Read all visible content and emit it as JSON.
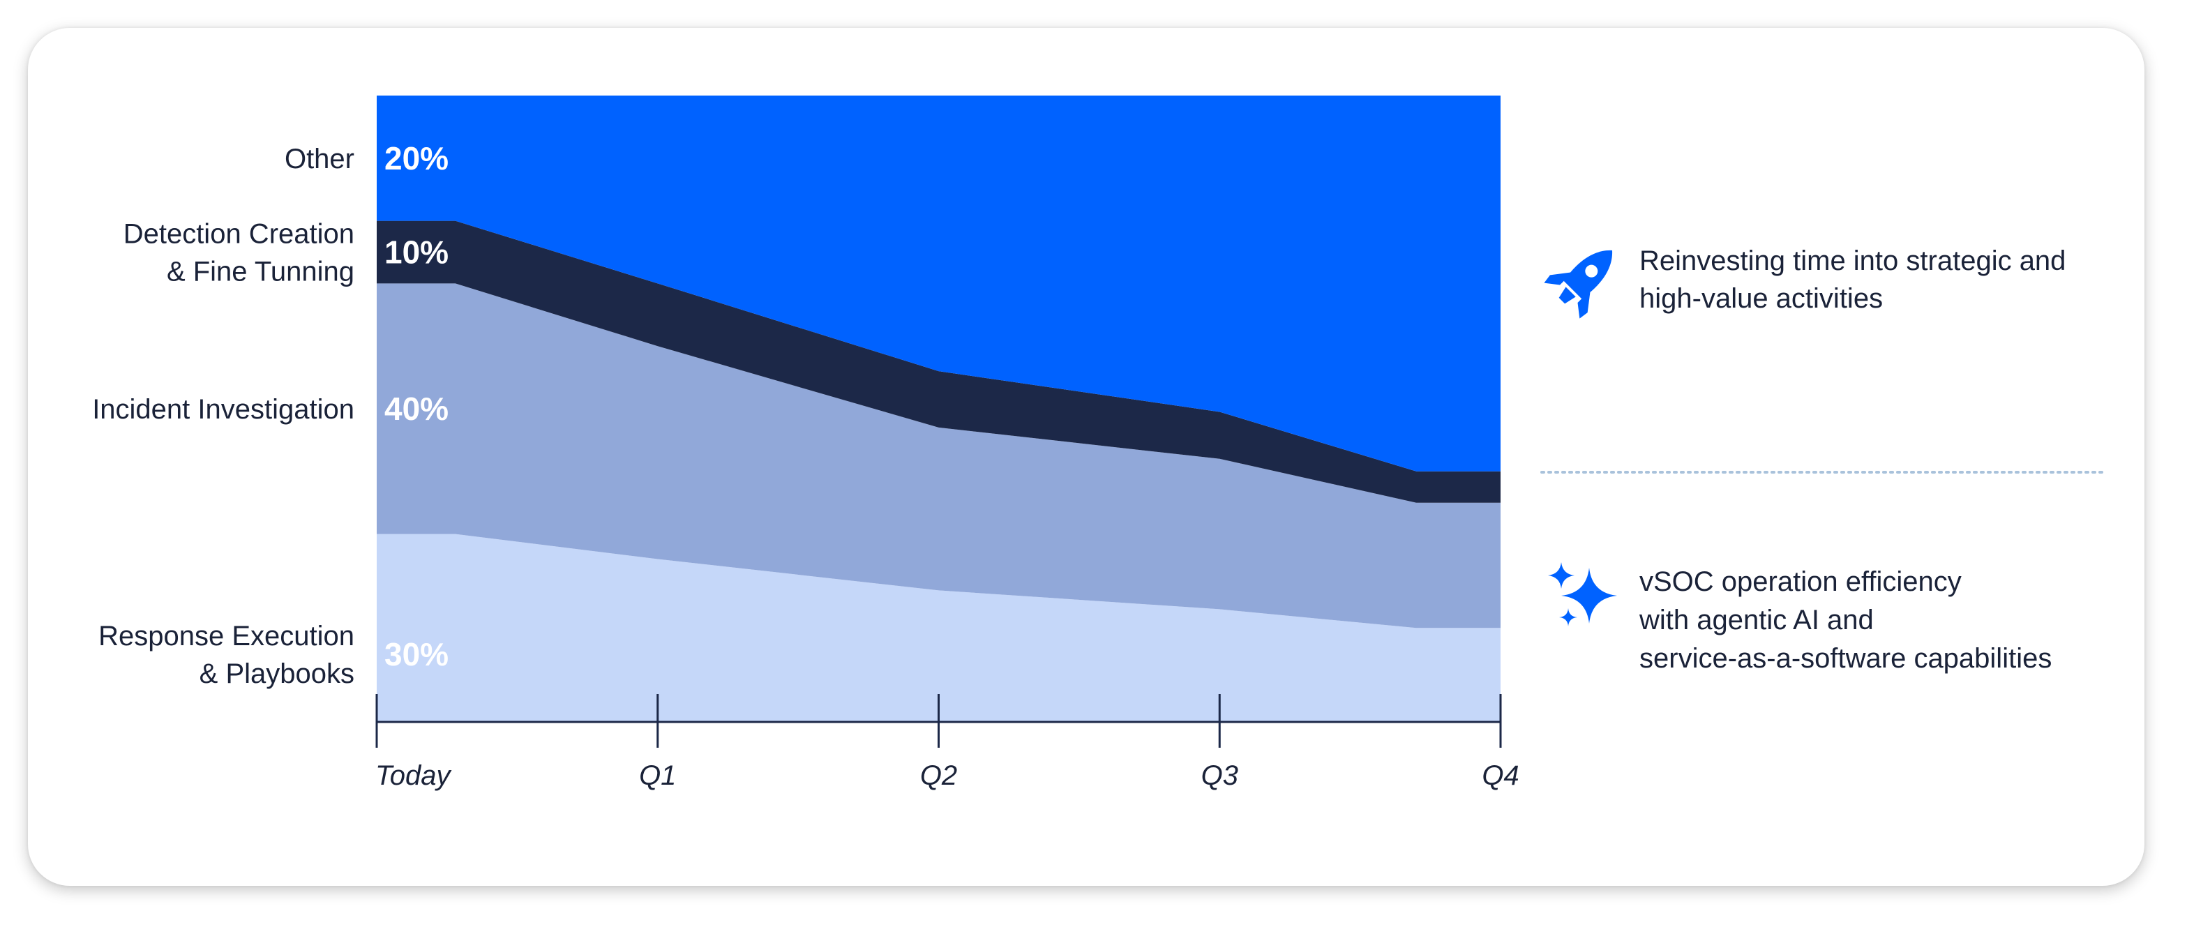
{
  "chart_data": {
    "type": "area",
    "stacked": true,
    "x": [
      "Today",
      "Q1",
      "Q2",
      "Q3",
      "Q4"
    ],
    "ylim": [
      0,
      100
    ],
    "series": [
      {
        "name": "Response Execution & Playbooks",
        "label_lines": [
          "Response Execution",
          "& Playbooks"
        ],
        "pct_label": "30%",
        "color": "#c5d7f9",
        "points": [
          [
            0,
            30
          ],
          [
            0.28,
            30
          ],
          [
            1,
            26
          ],
          [
            2,
            21
          ],
          [
            3,
            18
          ],
          [
            3.7,
            15
          ],
          [
            4,
            15
          ]
        ]
      },
      {
        "name": "Incident Investigation",
        "label_lines": [
          "Incident Investigation"
        ],
        "pct_label": "40%",
        "color": "#91a8d9",
        "points": [
          [
            0,
            40
          ],
          [
            0.28,
            40
          ],
          [
            1,
            34
          ],
          [
            2,
            26
          ],
          [
            3,
            24
          ],
          [
            3.7,
            20
          ],
          [
            4,
            20
          ]
        ]
      },
      {
        "name": "Detection Creation & Fine Tunning",
        "label_lines": [
          "Detection Creation",
          "& Fine Tunning"
        ],
        "pct_label": "10%",
        "color": "#1c2848",
        "points": [
          [
            0,
            10
          ],
          [
            0.28,
            10
          ],
          [
            1,
            10
          ],
          [
            2,
            9
          ],
          [
            3,
            7.5
          ],
          [
            3.7,
            5
          ],
          [
            4,
            5
          ]
        ]
      },
      {
        "name": "Other",
        "label_lines": [
          "Other"
        ],
        "pct_label": "20%",
        "color": "#0062ff",
        "points": [
          [
            0,
            20
          ],
          [
            0.28,
            20
          ],
          [
            1,
            30
          ],
          [
            2,
            44
          ],
          [
            3,
            50.5
          ],
          [
            3.7,
            60
          ],
          [
            4,
            60
          ]
        ]
      }
    ],
    "axis_color": "#1c2848"
  },
  "side_panel": {
    "items": [
      {
        "icon": "rocket-icon",
        "lines": [
          "Reinvesting time into strategic and",
          "high-value activities"
        ]
      },
      {
        "icon": "sparkle-icon",
        "lines": [
          "vSOC operation efficiency",
          "with agentic AI and",
          "service-as-a-software capabilities"
        ]
      }
    ],
    "icon_color": "#0062ff",
    "divider_color": "#a9c2db"
  }
}
